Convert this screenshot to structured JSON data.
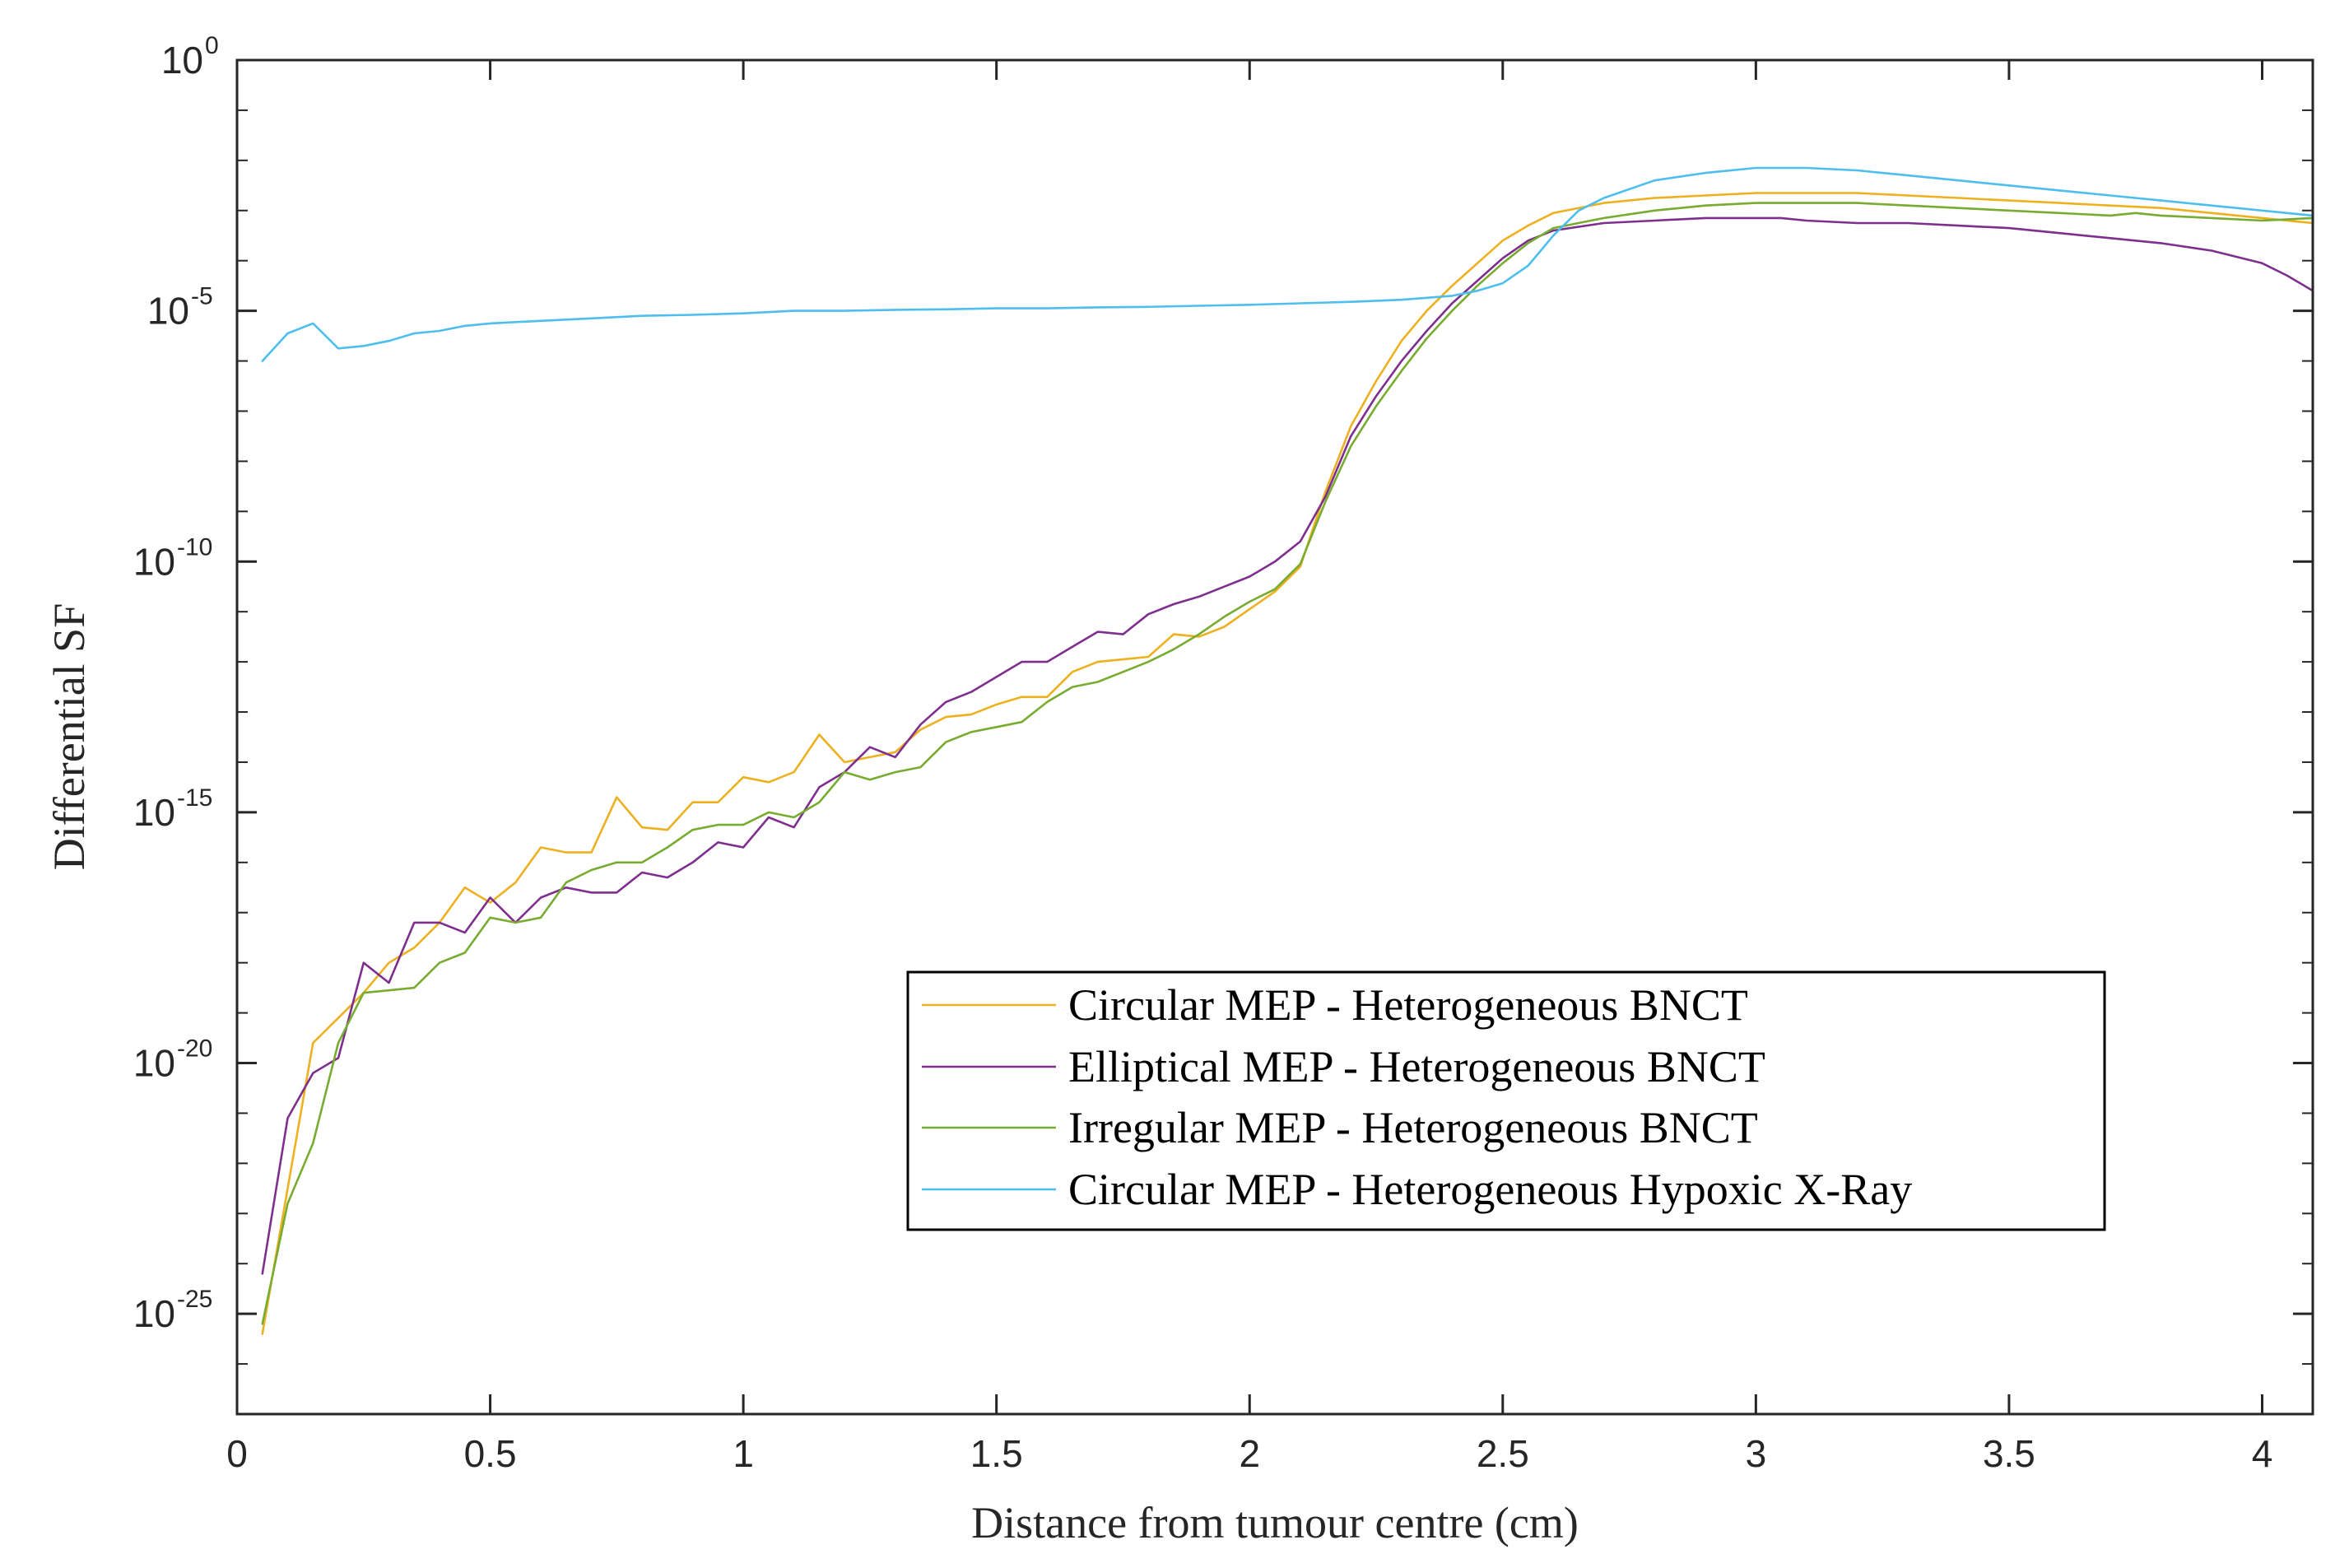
{
  "chart_data": {
    "type": "line",
    "title": "",
    "xlabel": "Distance from tumour centre (cm)",
    "ylabel": "Differential SF",
    "xlim": [
      0,
      4.1
    ],
    "ylim_log10": [
      -27,
      0
    ],
    "yscale": "log",
    "grid": false,
    "legend_position": "lower-right",
    "x_ticks": [
      {
        "value": 0,
        "label": "0"
      },
      {
        "value": 0.5,
        "label": "0.5"
      },
      {
        "value": 1,
        "label": "1"
      },
      {
        "value": 1.5,
        "label": "1.5"
      },
      {
        "value": 2,
        "label": "2"
      },
      {
        "value": 2.5,
        "label": "2.5"
      },
      {
        "value": 3,
        "label": "3"
      },
      {
        "value": 3.5,
        "label": "3.5"
      },
      {
        "value": 4,
        "label": "4"
      }
    ],
    "y_ticks": [
      {
        "exp": 0,
        "base": "10",
        "sup": "0"
      },
      {
        "exp": -5,
        "base": "10",
        "sup": "-5"
      },
      {
        "exp": -10,
        "base": "10",
        "sup": "-10"
      },
      {
        "exp": -15,
        "base": "10",
        "sup": "-15"
      },
      {
        "exp": -20,
        "base": "10",
        "sup": "-20"
      },
      {
        "exp": -25,
        "base": "10",
        "sup": "-25"
      }
    ],
    "series": [
      {
        "name": "Circular MEP - Heterogeneous BNCT",
        "color": "#EDB120",
        "x": [
          0.05,
          0.1,
          0.15,
          0.2,
          0.25,
          0.3,
          0.35,
          0.4,
          0.45,
          0.5,
          0.55,
          0.6,
          0.65,
          0.7,
          0.75,
          0.8,
          0.85,
          0.9,
          0.95,
          1.0,
          1.05,
          1.1,
          1.15,
          1.2,
          1.25,
          1.3,
          1.35,
          1.4,
          1.45,
          1.5,
          1.55,
          1.6,
          1.65,
          1.7,
          1.75,
          1.8,
          1.85,
          1.9,
          1.95,
          2.0,
          2.05,
          2.1,
          2.15,
          2.2,
          2.25,
          2.3,
          2.35,
          2.4,
          2.45,
          2.5,
          2.55,
          2.6,
          2.7,
          2.8,
          2.9,
          3.0,
          3.1,
          3.2,
          3.3,
          3.4,
          3.5,
          3.6,
          3.7,
          3.8,
          3.9,
          4.0,
          4.1
        ],
        "log10_y": [
          -25.4,
          -22.5,
          -19.6,
          -19.1,
          -18.6,
          -18.0,
          -17.7,
          -17.2,
          -16.5,
          -16.8,
          -16.4,
          -15.7,
          -15.8,
          -15.8,
          -14.7,
          -15.3,
          -15.35,
          -14.8,
          -14.8,
          -14.3,
          -14.4,
          -14.2,
          -13.45,
          -14.0,
          -13.9,
          -13.8,
          -13.35,
          -13.1,
          -13.05,
          -12.85,
          -12.7,
          -12.7,
          -12.2,
          -12.0,
          -11.95,
          -11.9,
          -11.45,
          -11.5,
          -11.3,
          -10.95,
          -10.6,
          -10.1,
          -8.6,
          -7.3,
          -6.4,
          -5.6,
          -5.0,
          -4.5,
          -4.05,
          -3.6,
          -3.3,
          -3.05,
          -2.85,
          -2.75,
          -2.7,
          -2.65,
          -2.65,
          -2.65,
          -2.7,
          -2.75,
          -2.8,
          -2.85,
          -2.9,
          -2.95,
          -3.05,
          -3.15,
          -3.25
        ]
      },
      {
        "name": "Elliptical MEP - Heterogeneous BNCT",
        "color": "#7E2F8E",
        "x": [
          0.05,
          0.1,
          0.15,
          0.2,
          0.25,
          0.3,
          0.35,
          0.4,
          0.45,
          0.5,
          0.55,
          0.6,
          0.65,
          0.7,
          0.75,
          0.8,
          0.85,
          0.9,
          0.95,
          1.0,
          1.05,
          1.1,
          1.15,
          1.2,
          1.25,
          1.3,
          1.35,
          1.4,
          1.45,
          1.5,
          1.55,
          1.6,
          1.65,
          1.7,
          1.75,
          1.8,
          1.85,
          1.9,
          1.95,
          2.0,
          2.05,
          2.1,
          2.15,
          2.2,
          2.25,
          2.3,
          2.35,
          2.4,
          2.45,
          2.5,
          2.55,
          2.6,
          2.7,
          2.8,
          2.9,
          3.0,
          3.05,
          3.1,
          3.2,
          3.3,
          3.4,
          3.5,
          3.6,
          3.7,
          3.8,
          3.9,
          4.0,
          4.05,
          4.1
        ],
        "log10_y": [
          -24.2,
          -21.1,
          -20.2,
          -19.9,
          -18.0,
          -18.4,
          -17.2,
          -17.2,
          -17.4,
          -16.7,
          -17.2,
          -16.7,
          -16.5,
          -16.6,
          -16.6,
          -16.2,
          -16.3,
          -16.0,
          -15.6,
          -15.7,
          -15.1,
          -15.3,
          -14.5,
          -14.2,
          -13.7,
          -13.9,
          -13.25,
          -12.8,
          -12.6,
          -12.3,
          -12.0,
          -12.0,
          -11.7,
          -11.4,
          -11.45,
          -11.05,
          -10.85,
          -10.7,
          -10.5,
          -10.3,
          -10.0,
          -9.6,
          -8.7,
          -7.5,
          -6.7,
          -6.0,
          -5.4,
          -4.85,
          -4.4,
          -3.95,
          -3.6,
          -3.4,
          -3.25,
          -3.2,
          -3.15,
          -3.15,
          -3.15,
          -3.2,
          -3.25,
          -3.25,
          -3.3,
          -3.35,
          -3.45,
          -3.55,
          -3.65,
          -3.8,
          -4.05,
          -4.3,
          -4.6
        ]
      },
      {
        "name": "Irregular MEP - Heterogeneous BNCT",
        "color": "#77AC30",
        "x": [
          0.05,
          0.1,
          0.15,
          0.2,
          0.25,
          0.3,
          0.35,
          0.4,
          0.45,
          0.5,
          0.55,
          0.6,
          0.65,
          0.7,
          0.75,
          0.8,
          0.85,
          0.9,
          0.95,
          1.0,
          1.05,
          1.1,
          1.15,
          1.2,
          1.25,
          1.3,
          1.35,
          1.4,
          1.45,
          1.5,
          1.55,
          1.6,
          1.65,
          1.7,
          1.75,
          1.8,
          1.85,
          1.9,
          1.95,
          2.0,
          2.05,
          2.1,
          2.15,
          2.2,
          2.25,
          2.3,
          2.35,
          2.4,
          2.45,
          2.5,
          2.55,
          2.6,
          2.7,
          2.8,
          2.9,
          3.0,
          3.1,
          3.2,
          3.3,
          3.4,
          3.5,
          3.6,
          3.7,
          3.75,
          3.8,
          3.9,
          4.0,
          4.1
        ],
        "log10_y": [
          -25.2,
          -22.8,
          -21.6,
          -19.6,
          -18.6,
          -18.55,
          -18.5,
          -18.0,
          -17.8,
          -17.1,
          -17.2,
          -17.1,
          -16.4,
          -16.15,
          -16.0,
          -16.0,
          -15.7,
          -15.35,
          -15.25,
          -15.25,
          -15.0,
          -15.1,
          -14.8,
          -14.2,
          -14.35,
          -14.2,
          -14.1,
          -13.6,
          -13.4,
          -13.3,
          -13.2,
          -12.8,
          -12.5,
          -12.4,
          -12.2,
          -12.0,
          -11.75,
          -11.45,
          -11.1,
          -10.8,
          -10.55,
          -10.05,
          -8.8,
          -7.7,
          -6.9,
          -6.2,
          -5.55,
          -5.0,
          -4.5,
          -4.05,
          -3.65,
          -3.35,
          -3.15,
          -3.0,
          -2.9,
          -2.85,
          -2.85,
          -2.85,
          -2.9,
          -2.95,
          -3.0,
          -3.05,
          -3.1,
          -3.05,
          -3.1,
          -3.15,
          -3.2,
          -3.15
        ]
      },
      {
        "name": "Circular MEP - Heterogeneous Hypoxic X-Ray",
        "color": "#4DBEEE",
        "x": [
          0.05,
          0.1,
          0.15,
          0.2,
          0.25,
          0.3,
          0.35,
          0.4,
          0.45,
          0.5,
          0.6,
          0.7,
          0.8,
          0.9,
          1.0,
          1.1,
          1.2,
          1.3,
          1.4,
          1.5,
          1.6,
          1.7,
          1.8,
          1.9,
          2.0,
          2.1,
          2.2,
          2.3,
          2.4,
          2.45,
          2.5,
          2.55,
          2.6,
          2.65,
          2.7,
          2.8,
          2.9,
          3.0,
          3.1,
          3.2,
          3.3,
          3.4,
          3.5,
          3.6,
          3.7,
          3.8,
          3.9,
          4.0,
          4.1
        ],
        "log10_y": [
          -6.0,
          -5.45,
          -5.25,
          -5.75,
          -5.7,
          -5.6,
          -5.45,
          -5.4,
          -5.3,
          -5.25,
          -5.2,
          -5.15,
          -5.1,
          -5.08,
          -5.05,
          -5.0,
          -5.0,
          -4.98,
          -4.97,
          -4.95,
          -4.95,
          -4.93,
          -4.92,
          -4.9,
          -4.88,
          -4.85,
          -4.82,
          -4.78,
          -4.7,
          -4.6,
          -4.45,
          -4.1,
          -3.5,
          -3.0,
          -2.75,
          -2.4,
          -2.25,
          -2.15,
          -2.15,
          -2.2,
          -2.3,
          -2.4,
          -2.5,
          -2.6,
          -2.7,
          -2.8,
          -2.9,
          -3.0,
          -3.1
        ]
      }
    ]
  }
}
